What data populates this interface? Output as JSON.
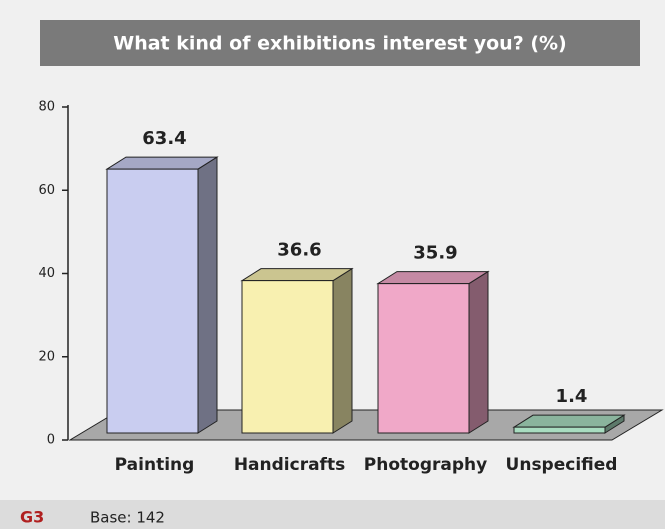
{
  "chart_data": {
    "type": "bar3d",
    "title": "What kind of exhibitions interest you? (%)",
    "categories": [
      "Painting",
      "Handicrafts",
      "Photography",
      "Unspecified"
    ],
    "values": [
      63.4,
      36.6,
      35.9,
      1.4
    ],
    "colors": [
      "#c9cdf0",
      "#f8f0b0",
      "#f0a8c8",
      "#a8dcc0"
    ],
    "ylim": [
      0,
      80
    ],
    "yticks": [
      0,
      20,
      40,
      60,
      80
    ],
    "figure_label": "G3",
    "note": "Base: 142"
  }
}
